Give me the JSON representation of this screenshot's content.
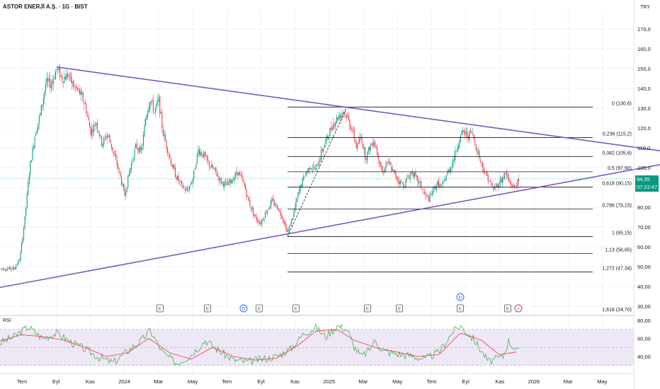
{
  "header": {
    "title": "ASTOR ENERJİ A.Ş. · 1G · BIST",
    "currency": "TRY"
  },
  "rsi_panel": {
    "label": "RSI"
  },
  "last_price": {
    "value": "94,35",
    "time": "07:22:47",
    "color": "#089981"
  },
  "colors": {
    "up": "#089981",
    "down": "#f23645",
    "trendline": "#7e57c2",
    "fib": "#131722",
    "rsi": "#4caf50",
    "rsi_ma": "#f23645",
    "rsi_band": "#ede7f6"
  },
  "chart_data": [
    {
      "type": "candlestick",
      "price_axis": {
        "ticks": [
          "170,0",
          "160,0",
          "150,0",
          "140,0",
          "130,0",
          "120,0",
          "110,0",
          "100,0",
          "90,00",
          "80,00",
          "70,00",
          "60,00",
          "50,00",
          "40,00",
          "30,00"
        ]
      },
      "time_axis": {
        "ticks": [
          "Tem",
          "Eyl",
          "Kas",
          "2024",
          "Mar",
          "May",
          "Tem",
          "Eyl",
          "Kas",
          "2025",
          "Mar",
          "May",
          "Tem",
          "Eyl",
          "Kas",
          "2026",
          "Mar",
          "May"
        ]
      },
      "price_path": [
        [
          0,
          49
        ],
        [
          20,
          49
        ],
        [
          28,
          54
        ],
        [
          35,
          74
        ],
        [
          42,
          100
        ],
        [
          50,
          118
        ],
        [
          57,
          127
        ],
        [
          65,
          143
        ],
        [
          72,
          142
        ],
        [
          80,
          150
        ],
        [
          88,
          145
        ],
        [
          96,
          147
        ],
        [
          104,
          141
        ],
        [
          112,
          138
        ],
        [
          120,
          132
        ],
        [
          128,
          118
        ],
        [
          136,
          123
        ],
        [
          144,
          112
        ],
        [
          152,
          117
        ],
        [
          160,
          108
        ],
        [
          168,
          98
        ],
        [
          176,
          86
        ],
        [
          184,
          100
        ],
        [
          192,
          111
        ],
        [
          200,
          108
        ],
        [
          206,
          126
        ],
        [
          212,
          135
        ],
        [
          218,
          128
        ],
        [
          224,
          134
        ],
        [
          230,
          118
        ],
        [
          236,
          110
        ],
        [
          242,
          102
        ],
        [
          248,
          96
        ],
        [
          256,
          91
        ],
        [
          264,
          88
        ],
        [
          272,
          94
        ],
        [
          280,
          109
        ],
        [
          288,
          106
        ],
        [
          296,
          101
        ],
        [
          304,
          98
        ],
        [
          312,
          93
        ],
        [
          320,
          91
        ],
        [
          328,
          94
        ],
        [
          336,
          98
        ],
        [
          344,
          92
        ],
        [
          352,
          82
        ],
        [
          360,
          75
        ],
        [
          368,
          72
        ],
        [
          376,
          78
        ],
        [
          384,
          83
        ],
        [
          392,
          80
        ],
        [
          400,
          74
        ],
        [
          406,
          67
        ],
        [
          414,
          76
        ],
        [
          422,
          88
        ],
        [
          430,
          96
        ],
        [
          438,
          101
        ],
        [
          446,
          99
        ],
        [
          454,
          108
        ],
        [
          462,
          115
        ],
        [
          470,
          122
        ],
        [
          478,
          126
        ],
        [
          486,
          129
        ],
        [
          492,
          124
        ],
        [
          498,
          118
        ],
        [
          504,
          110
        ],
        [
          510,
          116
        ],
        [
          516,
          105
        ],
        [
          522,
          110
        ],
        [
          528,
          114
        ],
        [
          534,
          106
        ],
        [
          540,
          97
        ],
        [
          546,
          103
        ],
        [
          552,
          100
        ],
        [
          558,
          96
        ],
        [
          564,
          93
        ],
        [
          570,
          91
        ],
        [
          576,
          95
        ],
        [
          582,
          98
        ],
        [
          588,
          94
        ],
        [
          594,
          91
        ],
        [
          600,
          86
        ],
        [
          606,
          84
        ],
        [
          612,
          89
        ],
        [
          618,
          92
        ],
        [
          624,
          90
        ],
        [
          630,
          96
        ],
        [
          636,
          100
        ],
        [
          642,
          106
        ],
        [
          648,
          114
        ],
        [
          654,
          118
        ],
        [
          660,
          116
        ],
        [
          666,
          118
        ],
        [
          672,
          111
        ],
        [
          678,
          104
        ],
        [
          684,
          98
        ],
        [
          690,
          94
        ],
        [
          696,
          89
        ],
        [
          702,
          91
        ],
        [
          708,
          94
        ],
        [
          714,
          97
        ],
        [
          720,
          92
        ],
        [
          726,
          90
        ],
        [
          732,
          93
        ]
      ],
      "trendlines": [
        {
          "from": [
            80,
            150.8
          ],
          "to": [
            932,
            108.5
          ]
        },
        {
          "from": [
            0,
            39.5
          ],
          "to": [
            932,
            101.5
          ]
        }
      ],
      "fibonacci": {
        "x_start": 406,
        "x_end": 837,
        "levels": [
          {
            "ratio": "0",
            "price": 130.6,
            "label": "0 (130,6)"
          },
          {
            "ratio": "0,236",
            "price": 115.2,
            "label": "0,236 (115,2)"
          },
          {
            "ratio": "0,382",
            "price": 105.6,
            "label": "0,382 (105,6)"
          },
          {
            "ratio": "0,5",
            "price": 97.9,
            "label": "0,5 (97,90)"
          },
          {
            "ratio": "0,618",
            "price": 90.15,
            "label": "0,618 (90,15)"
          },
          {
            "ratio": "0,786",
            "price": 79.15,
            "label": "0,786 (79,15)"
          },
          {
            "ratio": "1",
            "price": 65.15,
            "label": "1 (65,15)"
          },
          {
            "ratio": "1,13",
            "price": 56.65,
            "label": "1,13 (56,65)"
          },
          {
            "ratio": "1,272",
            "price": 47.34,
            "label": "1,272 (47,34)"
          },
          {
            "ratio": "1,618",
            "price": 24.7,
            "label": "1,618 (24,70)"
          }
        ]
      },
      "events": [
        {
          "type": "E",
          "x": 226
        },
        {
          "type": "E",
          "x": 293
        },
        {
          "type": "D",
          "x": 344
        },
        {
          "type": "E",
          "x": 366
        },
        {
          "type": "E",
          "x": 418
        },
        {
          "type": "E",
          "x": 519
        },
        {
          "type": "E",
          "x": 564
        },
        {
          "type": "E",
          "x": 650
        },
        {
          "type": "D",
          "x": 650,
          "row": 2
        },
        {
          "type": "E",
          "x": 717
        },
        {
          "type": "S",
          "x": 732
        }
      ]
    },
    {
      "type": "line",
      "name": "RSI",
      "y_axis": {
        "ticks": [
          "80,00",
          "60,00",
          "40,00"
        ]
      },
      "bands": [
        70,
        50,
        30
      ],
      "rsi": [
        [
          0,
          55
        ],
        [
          20,
          62
        ],
        [
          40,
          73
        ],
        [
          60,
          60
        ],
        [
          80,
          66
        ],
        [
          100,
          56
        ],
        [
          120,
          48
        ],
        [
          140,
          39
        ],
        [
          160,
          33
        ],
        [
          180,
          46
        ],
        [
          200,
          58
        ],
        [
          212,
          69
        ],
        [
          230,
          44
        ],
        [
          250,
          32
        ],
        [
          270,
          42
        ],
        [
          290,
          58
        ],
        [
          310,
          46
        ],
        [
          330,
          36
        ],
        [
          350,
          34
        ],
        [
          370,
          37
        ],
        [
          390,
          40
        ],
        [
          410,
          48
        ],
        [
          430,
          66
        ],
        [
          446,
          72
        ],
        [
          460,
          62
        ],
        [
          476,
          74
        ],
        [
          490,
          70
        ],
        [
          500,
          51
        ],
        [
          510,
          40
        ],
        [
          520,
          46
        ],
        [
          530,
          58
        ],
        [
          540,
          46
        ],
        [
          560,
          43
        ],
        [
          580,
          41
        ],
        [
          600,
          37
        ],
        [
          620,
          45
        ],
        [
          640,
          68
        ],
        [
          650,
          74
        ],
        [
          670,
          58
        ],
        [
          690,
          34
        ],
        [
          710,
          40
        ],
        [
          718,
          57
        ],
        [
          732,
          45
        ]
      ],
      "rsi_ma": [
        [
          0,
          57
        ],
        [
          30,
          64
        ],
        [
          60,
          62
        ],
        [
          90,
          58
        ],
        [
          120,
          50
        ],
        [
          150,
          40
        ],
        [
          180,
          44
        ],
        [
          210,
          60
        ],
        [
          240,
          44
        ],
        [
          270,
          37
        ],
        [
          300,
          50
        ],
        [
          330,
          40
        ],
        [
          360,
          36
        ],
        [
          390,
          38
        ],
        [
          420,
          52
        ],
        [
          446,
          68
        ],
        [
          476,
          70
        ],
        [
          500,
          58
        ],
        [
          530,
          50
        ],
        [
          560,
          45
        ],
        [
          590,
          40
        ],
        [
          620,
          42
        ],
        [
          650,
          66
        ],
        [
          680,
          58
        ],
        [
          705,
          42
        ],
        [
          730,
          45
        ]
      ]
    }
  ]
}
